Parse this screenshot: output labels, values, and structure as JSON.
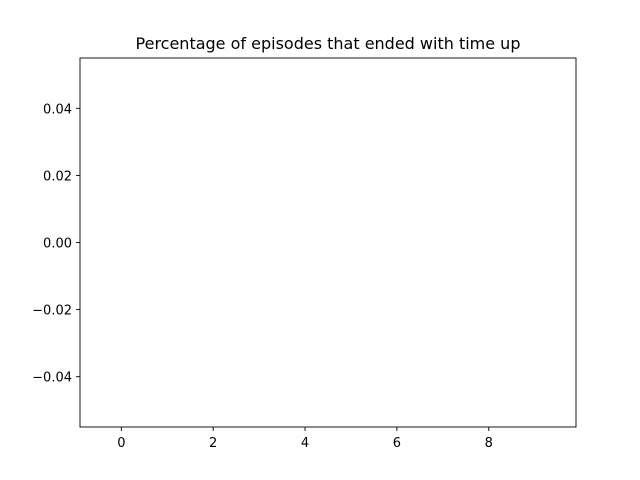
{
  "chart_data": {
    "type": "line",
    "title": "Percentage of episodes that ended with time up",
    "xlabel": "",
    "ylabel": "",
    "series": [],
    "xlim": [
      -0.9,
      9.9
    ],
    "ylim": [
      -0.055,
      0.055
    ],
    "x_ticks": [
      0,
      2,
      4,
      6,
      8
    ],
    "x_tick_labels": [
      "0",
      "2",
      "4",
      "6",
      "8"
    ],
    "y_ticks": [
      0.04,
      0.02,
      0.0,
      -0.02,
      -0.04
    ],
    "y_tick_labels": [
      "0.04",
      "0.02",
      "0.00",
      "−0.02",
      "−0.04"
    ],
    "grid": false,
    "legend": "none"
  }
}
